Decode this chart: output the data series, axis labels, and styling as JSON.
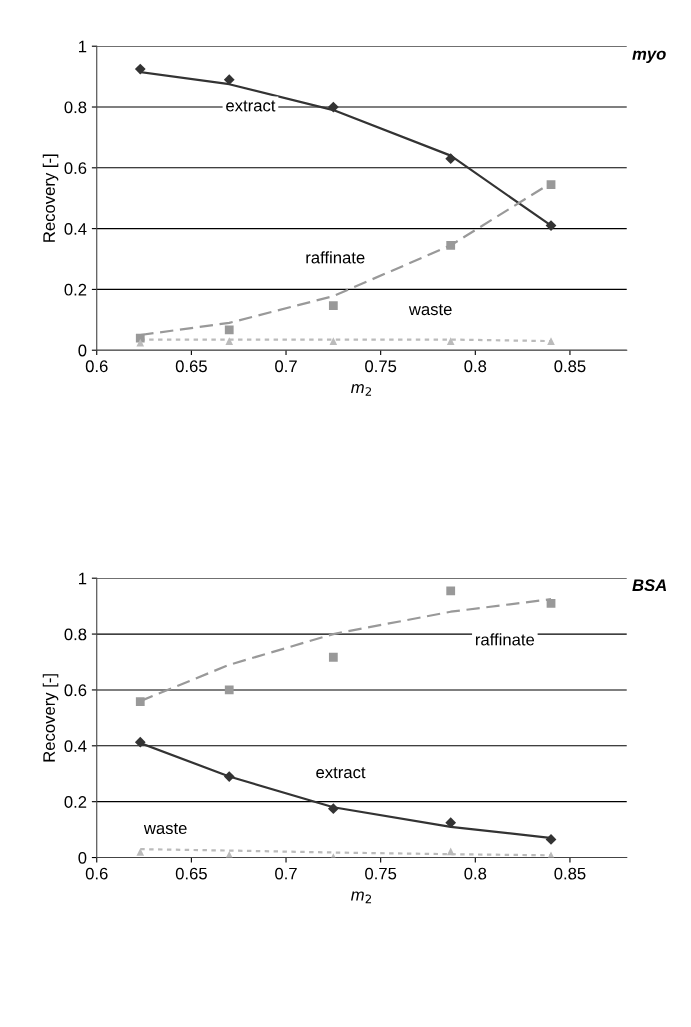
{
  "chart_data": [
    {
      "type": "scatter",
      "title": "myo",
      "xlabel": "m$_{2}$",
      "ylabel": "Recovery [-]",
      "x": [
        0.623,
        0.67,
        0.725,
        0.787,
        0.84
      ],
      "xlim": [
        0.6,
        0.88
      ],
      "xticks": [
        0.6,
        0.65,
        0.7,
        0.75,
        0.8,
        0.85
      ],
      "ylim": [
        0,
        1
      ],
      "yticks": [
        0,
        0.2,
        0.4,
        0.6,
        0.8,
        1
      ],
      "grid": "y",
      "series": [
        {
          "marker": "diamond",
          "color": "#333333",
          "values": [
            0.925,
            0.89,
            0.8,
            0.63,
            0.41
          ]
        },
        {
          "marker": "square",
          "color": "#999999",
          "values": [
            0.04,
            0.067,
            0.147,
            0.345,
            0.545
          ]
        },
        {
          "marker": "triangle",
          "color": "#bbbbbb",
          "values": [
            0.025,
            0.03,
            0.03,
            0.03,
            0.03
          ]
        },
        {
          "type": "line",
          "line_style": "solid",
          "color": "#333333",
          "values": [
            0.915,
            0.875,
            0.79,
            0.64,
            0.41
          ]
        },
        {
          "type": "line",
          "line_style": "dashed",
          "color": "#999999",
          "values": [
            0.05,
            0.09,
            0.178,
            0.345,
            0.55
          ]
        },
        {
          "type": "line",
          "line_style": "dotted",
          "color": "#bbbbbb",
          "values": [
            0.035,
            0.035,
            0.035,
            0.035,
            0.03
          ]
        }
      ],
      "annotations": [
        "extract",
        "raffinate",
        "waste"
      ]
    },
    {
      "type": "scatter",
      "title": "BSA",
      "xlabel": "m$_{2}$",
      "ylabel": "Recovery [-]",
      "x": [
        0.623,
        0.67,
        0.725,
        0.787,
        0.84
      ],
      "xlim": [
        0.6,
        0.88
      ],
      "xticks": [
        0.6,
        0.65,
        0.7,
        0.75,
        0.8,
        0.85
      ],
      "ylim": [
        0,
        1
      ],
      "yticks": [
        0,
        0.2,
        0.4,
        0.6,
        0.8,
        1
      ],
      "grid": "y",
      "series": [
        {
          "marker": "diamond",
          "color": "#333333",
          "values": [
            0.413,
            0.29,
            0.175,
            0.125,
            0.065
          ]
        },
        {
          "marker": "square",
          "color": "#999999",
          "values": [
            0.558,
            0.6,
            0.717,
            0.955,
            0.91
          ]
        },
        {
          "marker": "triangle",
          "color": "#bbbbbb",
          "values": [
            0.02,
            0.01,
            0.002,
            0.022,
            0.008
          ]
        },
        {
          "type": "line",
          "line_style": "solid",
          "color": "#333333",
          "values": [
            0.41,
            0.29,
            0.18,
            0.11,
            0.07
          ]
        },
        {
          "type": "line",
          "line_style": "dashed",
          "color": "#999999",
          "values": [
            0.56,
            0.69,
            0.8,
            0.88,
            0.925
          ]
        },
        {
          "type": "line",
          "line_style": "dotted",
          "color": "#bbbbbb",
          "values": [
            0.03,
            0.025,
            0.018,
            0.012,
            0.008
          ]
        }
      ],
      "annotations": [
        "raffinate",
        "extract",
        "waste"
      ]
    }
  ]
}
